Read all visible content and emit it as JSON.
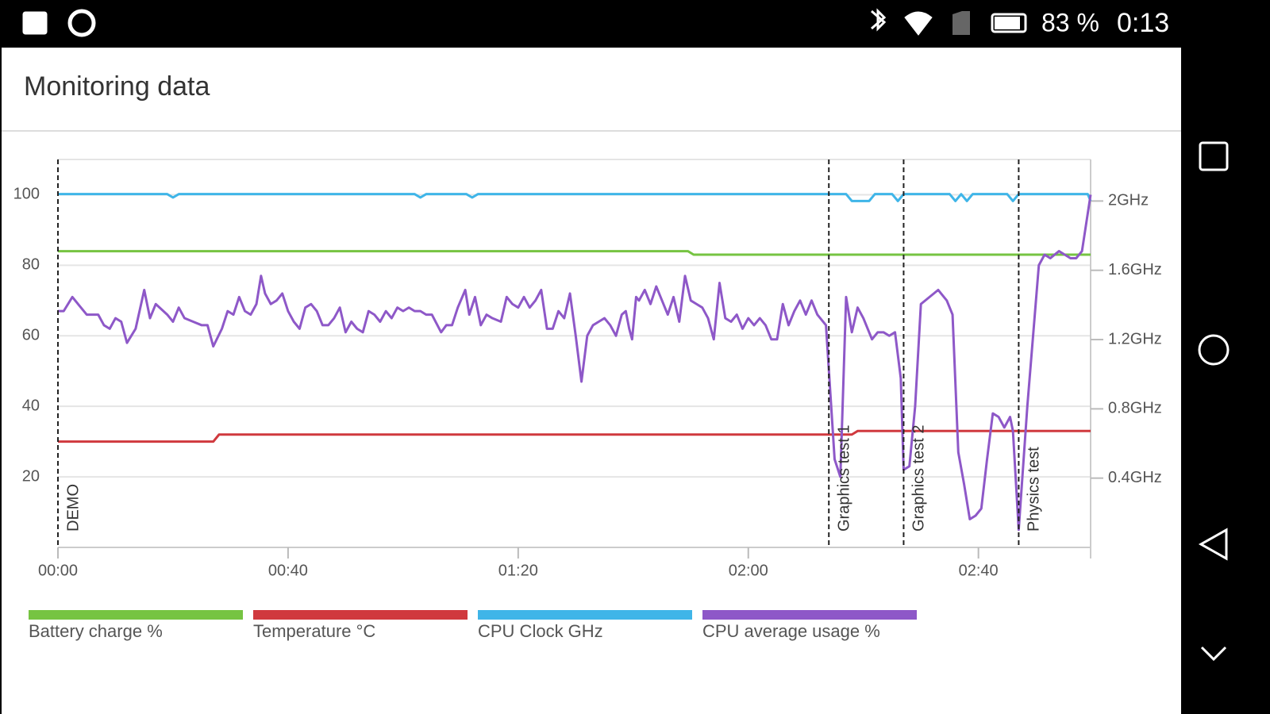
{
  "status_bar": {
    "battery": "83 %",
    "time": "0:13"
  },
  "header": {
    "title": "Monitoring data"
  },
  "chart_data": {
    "type": "line",
    "xlim": [
      0,
      179.5
    ],
    "xticks": [
      {
        "value": 0,
        "label": "00:00"
      },
      {
        "value": 40,
        "label": "00:40"
      },
      {
        "value": 80,
        "label": "01:20"
      },
      {
        "value": 120,
        "label": "02:00"
      },
      {
        "value": 160,
        "label": "02:40"
      }
    ],
    "ylim": [
      0,
      110
    ],
    "yticks": [
      20,
      40,
      60,
      80,
      100
    ],
    "y2lim": [
      0,
      2.24
    ],
    "y2ticks": [
      {
        "value": 0.4,
        "label": "0.4GHz"
      },
      {
        "value": 0.8,
        "label": "0.8GHz"
      },
      {
        "value": 1.2,
        "label": "1.2GHz"
      },
      {
        "value": 1.6,
        "label": "1.6GHz"
      },
      {
        "value": 2,
        "label": "2GHz"
      }
    ],
    "grid": true,
    "markers": [
      {
        "x": 0,
        "label": "DEMO"
      },
      {
        "x": 134,
        "label": "Graphics test 1"
      },
      {
        "x": 147,
        "label": "Graphics test 2"
      },
      {
        "x": 167,
        "label": "Physics test"
      }
    ],
    "series": [
      {
        "name": "Battery charge %",
        "color": "#76c442",
        "x": [
          0,
          109.5,
          110.5,
          179.5
        ],
        "values": [
          84,
          84,
          83,
          83
        ]
      },
      {
        "name": "Temperature °C",
        "color": "#d0393e",
        "x": [
          0,
          27,
          28,
          138,
          139,
          179.5
        ],
        "values": [
          30,
          30,
          32,
          32,
          33,
          33
        ]
      },
      {
        "name": "CPU Clock GHz",
        "color": "#3fb5e8",
        "axis": "y2",
        "x": [
          0,
          19,
          20,
          21,
          62,
          63,
          64,
          71,
          72,
          73,
          137,
          138,
          141,
          142,
          145,
          146,
          147,
          155,
          156,
          157,
          158,
          159,
          165,
          166,
          167,
          179,
          179.5
        ],
        "values": [
          2.04,
          2.04,
          2.02,
          2.04,
          2.04,
          2.02,
          2.04,
          2.04,
          2.02,
          2.04,
          2.04,
          2.0,
          2.0,
          2.04,
          2.04,
          2.0,
          2.04,
          2.04,
          2.0,
          2.04,
          2.0,
          2.04,
          2.04,
          2.0,
          2.04,
          2.04,
          2.0
        ]
      },
      {
        "name": "CPU average usage %",
        "color": "#8e58c8",
        "x": [
          0,
          1,
          2.5,
          3.5,
          5,
          7,
          8,
          9,
          10,
          11,
          12,
          13.5,
          15,
          16,
          17,
          19,
          20,
          21,
          22,
          23.5,
          25,
          26,
          27,
          28.5,
          29.5,
          30.5,
          31.5,
          32.5,
          33.5,
          34.5,
          35.3,
          36,
          37,
          38,
          39,
          40,
          41,
          42,
          43,
          44,
          45,
          46,
          47,
          48,
          49,
          50,
          51,
          52,
          53,
          54,
          55,
          56,
          57,
          58,
          59,
          60,
          61,
          62,
          63,
          64,
          65,
          66.6,
          67.5,
          68.5,
          69.5,
          70.8,
          71.5,
          72.5,
          73.5,
          74.5,
          75.5,
          77,
          78,
          79,
          80,
          81,
          82,
          83,
          84,
          85,
          86,
          87,
          88,
          89,
          90,
          91,
          92,
          93,
          94,
          95,
          96,
          97,
          98,
          98.7,
          99.3,
          99.8,
          100.5,
          101,
          102,
          103,
          104,
          105,
          106,
          107,
          108,
          109,
          110,
          111,
          112,
          113,
          114,
          115,
          116,
          117,
          118,
          119,
          120,
          121,
          122,
          123,
          124,
          125,
          126,
          127,
          128,
          129,
          130,
          131,
          132,
          133.5,
          135,
          136,
          137,
          138,
          139,
          140,
          141.5,
          142.5,
          143.5,
          144.5,
          145.5,
          146.5,
          147,
          148,
          149,
          150,
          151.5,
          153,
          154.5,
          155.5,
          156.5,
          157.5,
          158.5,
          159.5,
          160.5,
          161.5,
          162.5,
          163.5,
          164.5,
          165.5,
          166,
          167,
          168.5,
          170.5,
          171.5,
          172.5,
          174,
          175,
          176,
          177,
          178,
          179.5
        ],
        "values": [
          67,
          67,
          71,
          69,
          66,
          66,
          63,
          62,
          65,
          64,
          58,
          62,
          73,
          65,
          69,
          66,
          64,
          68,
          65,
          64,
          63,
          63,
          57,
          62,
          67,
          66,
          71,
          67,
          66,
          69,
          77,
          72,
          69,
          70,
          72,
          67,
          64,
          62,
          68,
          69,
          67,
          63,
          63,
          65,
          68,
          61,
          64,
          62,
          61,
          67,
          66,
          64,
          67,
          65,
          68,
          67,
          68,
          67,
          67,
          66,
          66,
          61,
          63,
          63,
          68,
          73,
          66,
          71,
          63,
          66,
          65,
          64,
          71,
          69,
          68,
          71,
          68,
          70,
          73,
          62,
          62,
          67,
          65,
          72,
          60,
          47,
          60,
          63,
          64,
          65,
          63,
          60,
          66,
          67,
          62,
          59,
          71,
          70,
          73,
          69,
          74,
          70,
          66,
          71,
          64,
          77,
          70,
          69,
          68,
          65,
          59,
          75,
          65,
          64,
          66,
          62,
          65,
          63,
          65,
          63,
          59,
          59,
          69,
          63,
          67,
          70,
          66,
          70,
          66,
          63,
          25,
          20,
          71,
          61,
          68,
          65,
          59,
          61,
          61,
          60,
          61,
          48,
          22,
          23,
          40,
          69,
          71,
          73,
          70,
          66,
          27,
          18,
          8,
          9,
          11,
          25,
          38,
          37,
          34,
          37,
          33,
          5,
          40,
          80,
          83,
          82,
          84,
          83,
          82,
          82,
          84,
          100
        ]
      }
    ]
  }
}
